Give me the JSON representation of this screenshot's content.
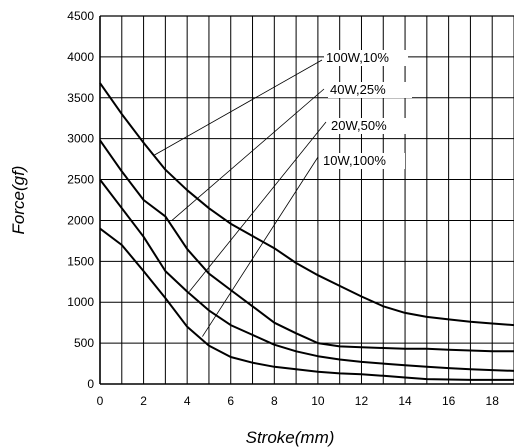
{
  "chart_data": {
    "type": "line",
    "xlabel": "Stroke(mm)",
    "ylabel": "Force(gf)",
    "xlim": [
      0,
      19
    ],
    "ylim": [
      0,
      4500
    ],
    "x_tick_labels": [
      "0",
      "2",
      "4",
      "6",
      "8",
      "10",
      "12",
      "14",
      "16",
      "18"
    ],
    "y_tick_labels": [
      "0",
      "500",
      "1000",
      "1500",
      "2000",
      "2500",
      "3000",
      "3500",
      "4000",
      "4500"
    ],
    "grid": true,
    "series": [
      {
        "name": "100W,10%",
        "x": [
          0,
          1,
          2,
          3,
          4,
          5,
          6,
          7,
          8,
          9,
          10,
          11,
          12,
          13,
          14,
          15,
          16,
          17,
          18,
          19
        ],
        "y": [
          3680,
          3300,
          2950,
          2620,
          2370,
          2150,
          1960,
          1810,
          1660,
          1480,
          1330,
          1200,
          1070,
          950,
          870,
          820,
          790,
          760,
          740,
          720
        ]
      },
      {
        "name": "40W,25%",
        "x": [
          0,
          1,
          2,
          3,
          4,
          5,
          6,
          7,
          8,
          9,
          9.5,
          10,
          11,
          12,
          13,
          14,
          15,
          16,
          17,
          18,
          19
        ],
        "y": [
          2980,
          2600,
          2250,
          2050,
          1650,
          1350,
          1150,
          950,
          750,
          620,
          560,
          500,
          460,
          450,
          440,
          430,
          430,
          420,
          410,
          400,
          400
        ]
      },
      {
        "name": "20W,50%",
        "x": [
          0,
          1,
          2,
          3,
          4,
          5,
          6,
          7,
          8,
          9,
          10,
          11,
          12,
          13,
          14,
          15,
          16,
          17,
          18,
          19
        ],
        "y": [
          2500,
          2150,
          1800,
          1380,
          1130,
          900,
          720,
          600,
          480,
          400,
          340,
          300,
          270,
          250,
          230,
          210,
          195,
          180,
          170,
          160
        ]
      },
      {
        "name": "10W,100%",
        "x": [
          0,
          1,
          2,
          3,
          4,
          5,
          6,
          7,
          8,
          9,
          10,
          11,
          12,
          13,
          14,
          15,
          16,
          17,
          18,
          19
        ],
        "y": [
          1900,
          1700,
          1380,
          1050,
          700,
          470,
          330,
          260,
          210,
          180,
          150,
          130,
          120,
          100,
          80,
          60,
          55,
          50,
          50,
          50
        ]
      }
    ],
    "annotations": [
      {
        "text": "100W,10%",
        "points_to_series": "100W,10%",
        "target_x": 2.5,
        "target_y": 2800
      },
      {
        "text": "40W,25%",
        "points_to_series": "40W,25%",
        "target_x": 3.3,
        "target_y": 2000
      },
      {
        "text": "20W,50%",
        "points_to_series": "20W,50%",
        "target_x": 4.1,
        "target_y": 1130
      },
      {
        "text": "10W,100%",
        "points_to_series": "10W,100%",
        "target_x": 4.7,
        "target_y": 580
      }
    ]
  }
}
